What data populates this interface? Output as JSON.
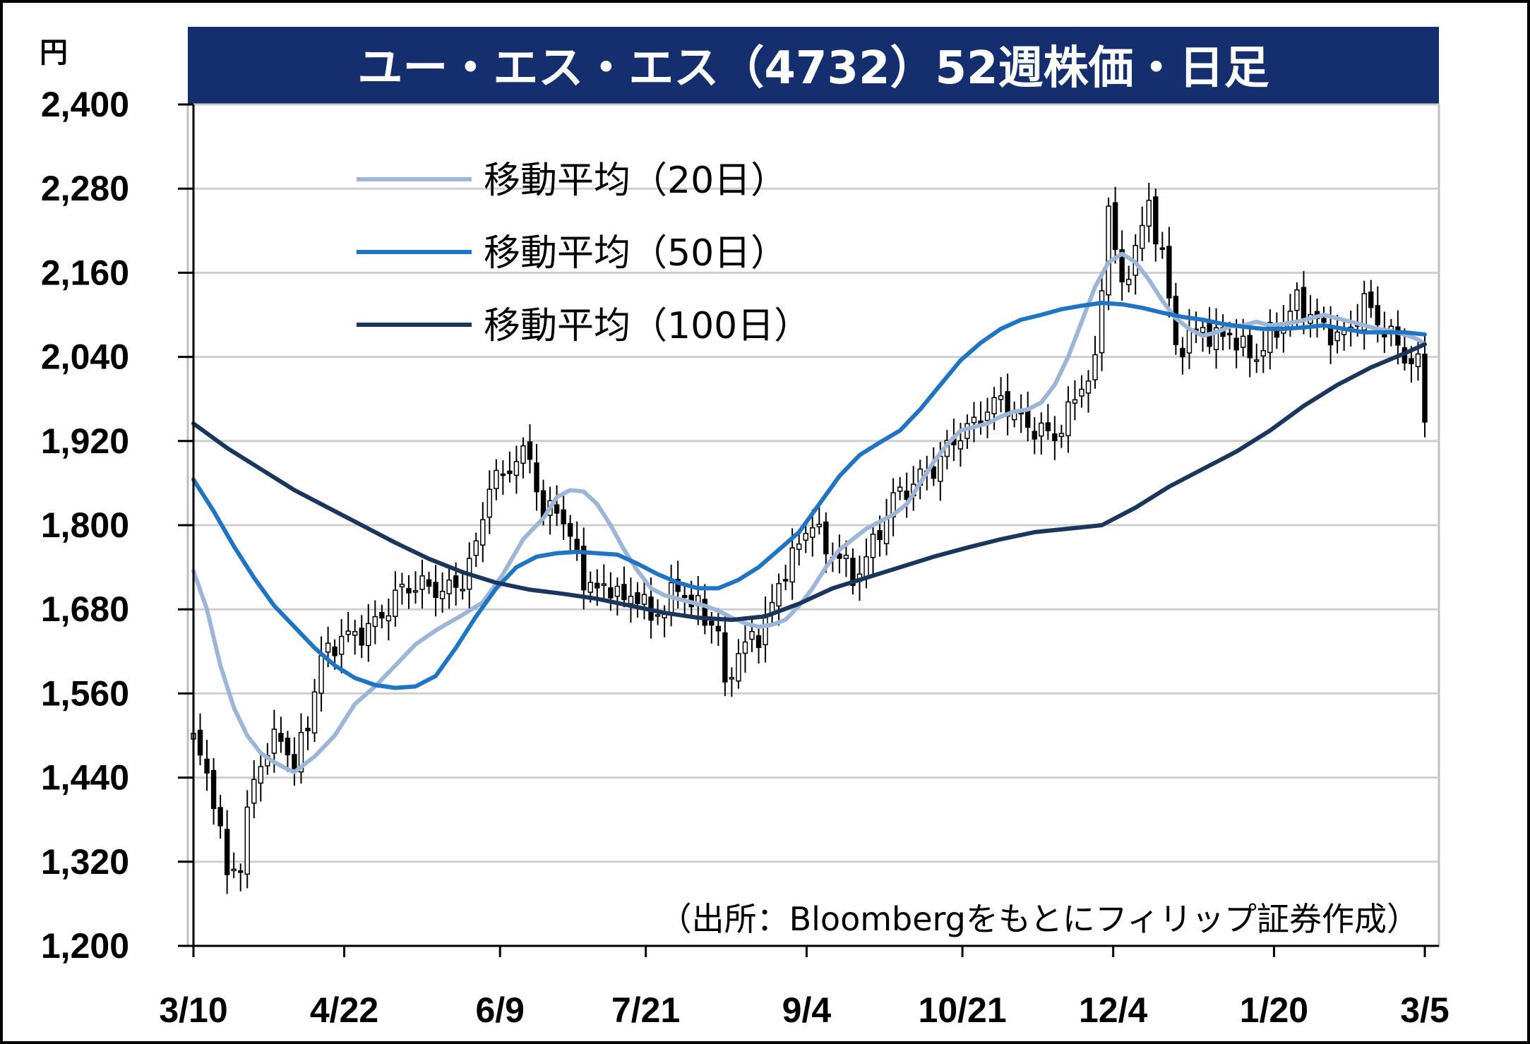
{
  "chart_data": {
    "type": "candlestick",
    "title": "ユー・エス・エス（4732）52週株価・日足",
    "y_unit": "円",
    "ylim": [
      1200,
      2400
    ],
    "y_ticks": [
      "2,400",
      "2,280",
      "2,160",
      "2,040",
      "1,920",
      "1,800",
      "1,680",
      "1,560",
      "1,440",
      "1,320",
      "1,200"
    ],
    "y_tick_values": [
      2400,
      2280,
      2160,
      2040,
      1920,
      1800,
      1680,
      1560,
      1440,
      1320,
      1200
    ],
    "x_ticks": [
      "3/10",
      "4/22",
      "6/9",
      "7/21",
      "9/4",
      "10/21",
      "12/4",
      "1/20",
      "3/5"
    ],
    "source": "（出所：Bloombergをもとにフィリップ証券作成）",
    "grid": true,
    "legend_position": "top-left",
    "series": [
      {
        "name": "移動平均（20日）",
        "color": "#9db6d8",
        "points": [
          [
            0,
            1735
          ],
          [
            2,
            1680
          ],
          [
            4,
            1600
          ],
          [
            6,
            1540
          ],
          [
            8,
            1500
          ],
          [
            10,
            1475
          ],
          [
            12,
            1462
          ],
          [
            14,
            1452
          ],
          [
            15,
            1448
          ],
          [
            18,
            1470
          ],
          [
            21,
            1500
          ],
          [
            24,
            1545
          ],
          [
            27,
            1570
          ],
          [
            30,
            1600
          ],
          [
            33,
            1630
          ],
          [
            36,
            1650
          ],
          [
            40,
            1672
          ],
          [
            43,
            1690
          ],
          [
            46,
            1730
          ],
          [
            49,
            1780
          ],
          [
            52,
            1810
          ],
          [
            54,
            1840
          ],
          [
            56,
            1850
          ],
          [
            58,
            1848
          ],
          [
            60,
            1830
          ],
          [
            62,
            1800
          ],
          [
            64,
            1765
          ],
          [
            66,
            1735
          ],
          [
            68,
            1710
          ],
          [
            70,
            1700
          ],
          [
            72,
            1695
          ],
          [
            74,
            1690
          ],
          [
            76,
            1685
          ],
          [
            78,
            1678
          ],
          [
            80,
            1668
          ],
          [
            82,
            1660
          ],
          [
            84,
            1655
          ],
          [
            86,
            1658
          ],
          [
            88,
            1665
          ],
          [
            90,
            1685
          ],
          [
            92,
            1710
          ],
          [
            94,
            1740
          ],
          [
            96,
            1765
          ],
          [
            98,
            1780
          ],
          [
            100,
            1795
          ],
          [
            102,
            1805
          ],
          [
            104,
            1815
          ],
          [
            106,
            1830
          ],
          [
            108,
            1860
          ],
          [
            110,
            1890
          ],
          [
            112,
            1915
          ],
          [
            114,
            1935
          ],
          [
            116,
            1940
          ],
          [
            118,
            1945
          ],
          [
            120,
            1955
          ],
          [
            122,
            1962
          ],
          [
            124,
            1965
          ],
          [
            126,
            1975
          ],
          [
            128,
            2000
          ],
          [
            130,
            2040
          ],
          [
            132,
            2090
          ],
          [
            134,
            2140
          ],
          [
            136,
            2175
          ],
          [
            138,
            2187
          ],
          [
            140,
            2175
          ],
          [
            142,
            2150
          ],
          [
            144,
            2120
          ],
          [
            146,
            2095
          ],
          [
            148,
            2080
          ],
          [
            150,
            2070
          ],
          [
            152,
            2075
          ],
          [
            154,
            2083
          ],
          [
            156,
            2085
          ],
          [
            158,
            2090
          ],
          [
            160,
            2085
          ],
          [
            162,
            2087
          ],
          [
            164,
            2090
          ],
          [
            166,
            2095
          ],
          [
            168,
            2100
          ],
          [
            170,
            2095
          ],
          [
            172,
            2090
          ],
          [
            174,
            2085
          ],
          [
            176,
            2080
          ],
          [
            178,
            2077
          ],
          [
            180,
            2072
          ],
          [
            182,
            2065
          ],
          [
            183,
            2058
          ]
        ]
      },
      {
        "name": "移動平均（50日）",
        "color": "#1f74c4",
        "points": [
          [
            0,
            1865
          ],
          [
            3,
            1820
          ],
          [
            6,
            1770
          ],
          [
            9,
            1725
          ],
          [
            12,
            1685
          ],
          [
            15,
            1655
          ],
          [
            18,
            1625
          ],
          [
            21,
            1600
          ],
          [
            24,
            1582
          ],
          [
            27,
            1572
          ],
          [
            30,
            1568
          ],
          [
            33,
            1570
          ],
          [
            36,
            1585
          ],
          [
            39,
            1625
          ],
          [
            42,
            1670
          ],
          [
            45,
            1710
          ],
          [
            48,
            1740
          ],
          [
            51,
            1755
          ],
          [
            54,
            1760
          ],
          [
            57,
            1762
          ],
          [
            60,
            1760
          ],
          [
            63,
            1758
          ],
          [
            66,
            1745
          ],
          [
            69,
            1730
          ],
          [
            72,
            1718
          ],
          [
            75,
            1710
          ],
          [
            78,
            1710
          ],
          [
            81,
            1722
          ],
          [
            84,
            1740
          ],
          [
            87,
            1765
          ],
          [
            90,
            1790
          ],
          [
            93,
            1830
          ],
          [
            96,
            1870
          ],
          [
            99,
            1900
          ],
          [
            102,
            1918
          ],
          [
            105,
            1935
          ],
          [
            108,
            1965
          ],
          [
            111,
            2000
          ],
          [
            114,
            2035
          ],
          [
            117,
            2060
          ],
          [
            120,
            2080
          ],
          [
            123,
            2093
          ],
          [
            126,
            2100
          ],
          [
            129,
            2108
          ],
          [
            132,
            2113
          ],
          [
            135,
            2117
          ],
          [
            138,
            2115
          ],
          [
            141,
            2110
          ],
          [
            144,
            2103
          ],
          [
            147,
            2097
          ],
          [
            150,
            2093
          ],
          [
            153,
            2087
          ],
          [
            156,
            2083
          ],
          [
            159,
            2080
          ],
          [
            162,
            2080
          ],
          [
            165,
            2082
          ],
          [
            168,
            2085
          ],
          [
            171,
            2080
          ],
          [
            174,
            2075
          ],
          [
            177,
            2075
          ],
          [
            180,
            2075
          ],
          [
            183,
            2072
          ]
        ]
      },
      {
        "name": "移動平均（100日）",
        "color": "#1b365d",
        "points": [
          [
            0,
            1945
          ],
          [
            5,
            1910
          ],
          [
            10,
            1880
          ],
          [
            15,
            1850
          ],
          [
            20,
            1825
          ],
          [
            25,
            1800
          ],
          [
            30,
            1775
          ],
          [
            35,
            1752
          ],
          [
            40,
            1733
          ],
          [
            45,
            1718
          ],
          [
            50,
            1708
          ],
          [
            55,
            1702
          ],
          [
            60,
            1695
          ],
          [
            65,
            1685
          ],
          [
            70,
            1675
          ],
          [
            75,
            1668
          ],
          [
            80,
            1665
          ],
          [
            85,
            1670
          ],
          [
            90,
            1688
          ],
          [
            95,
            1710
          ],
          [
            100,
            1725
          ],
          [
            105,
            1740
          ],
          [
            110,
            1755
          ],
          [
            115,
            1768
          ],
          [
            120,
            1780
          ],
          [
            125,
            1790
          ],
          [
            130,
            1795
          ],
          [
            135,
            1800
          ],
          [
            140,
            1825
          ],
          [
            145,
            1855
          ],
          [
            150,
            1880
          ],
          [
            155,
            1905
          ],
          [
            160,
            1935
          ],
          [
            165,
            1970
          ],
          [
            170,
            2000
          ],
          [
            175,
            2025
          ],
          [
            180,
            2045
          ],
          [
            183,
            2058
          ]
        ]
      }
    ]
  }
}
